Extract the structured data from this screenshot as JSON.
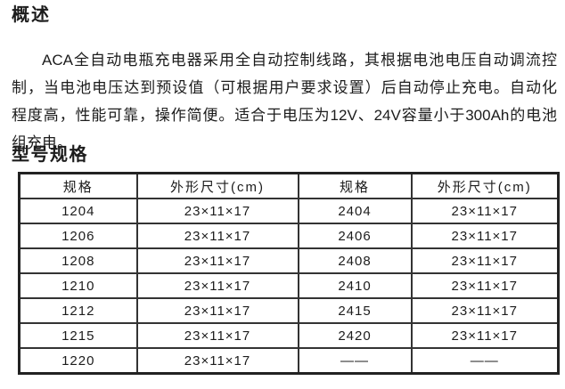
{
  "page": {
    "heading1": "概述",
    "heading2": "型号规格",
    "paragraph_lines": [
      "ACA全自动电瓶充电器采用全自动控制线路，其根据电池电压自动调流控",
      "制，当电池电压达到预设值（可根据用户要求设置）后自动停止充电。自动化",
      "程度高，性能可靠，操作简便。适合于电压为12V、24V容量小于300Ah的电池",
      "组充电。"
    ]
  },
  "table": {
    "headers": [
      "规格",
      "外形尺寸(cm)",
      "规格",
      "外形尺寸(cm)"
    ],
    "rows": [
      [
        "1204",
        "23×11×17",
        "2404",
        "23×11×17"
      ],
      [
        "1206",
        "23×11×17",
        "2406",
        "23×11×17"
      ],
      [
        "1208",
        "23×11×17",
        "2408",
        "23×11×17"
      ],
      [
        "1210",
        "23×11×17",
        "2410",
        "23×11×17"
      ],
      [
        "1212",
        "23×11×17",
        "2415",
        "23×11×17"
      ],
      [
        "1215",
        "23×11×17",
        "2420",
        "23×11×17"
      ],
      [
        "1220",
        "23×11×17",
        "——",
        "——"
      ]
    ]
  },
  "colors": {
    "text": "#1c1c1c",
    "background": "#ffffff",
    "table_border": "#333333"
  }
}
